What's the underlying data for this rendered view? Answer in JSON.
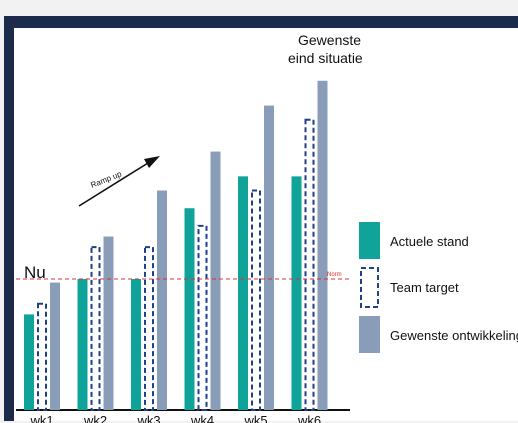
{
  "chart_data": {
    "type": "bar",
    "title": "",
    "xlabel": "",
    "ylabel": "",
    "categories": [
      "wk1",
      "wk2",
      "wk3",
      "wk4",
      "wk5",
      "wk6"
    ],
    "ylim": [
      0,
      100
    ],
    "series": [
      {
        "name": "Actuele stand",
        "values": [
          27,
          37,
          37,
          57,
          66,
          66
        ],
        "color": "#0fa39a",
        "style": "solid"
      },
      {
        "name": "Team target",
        "values": [
          30,
          46,
          46,
          52,
          62,
          82
        ],
        "color": "#1f3f8a",
        "style": "dashed"
      },
      {
        "name": "Gewenste ontwikkeling",
        "values": [
          36,
          49,
          62,
          73,
          86,
          93
        ],
        "color": "#8a9db8",
        "style": "solid"
      }
    ],
    "norm": {
      "value": 37,
      "label": "Norm",
      "color": "#e03030"
    },
    "annotations": {
      "now": "Nu",
      "ramp": "Ramp up",
      "goal_line1": "Gewenste",
      "goal_line2": "eind situatie"
    },
    "legend_position": "right",
    "grid": false
  },
  "colors": {
    "background": "#f2f2f2",
    "panel": "#ffffff",
    "frame": "#1c2b4a"
  }
}
